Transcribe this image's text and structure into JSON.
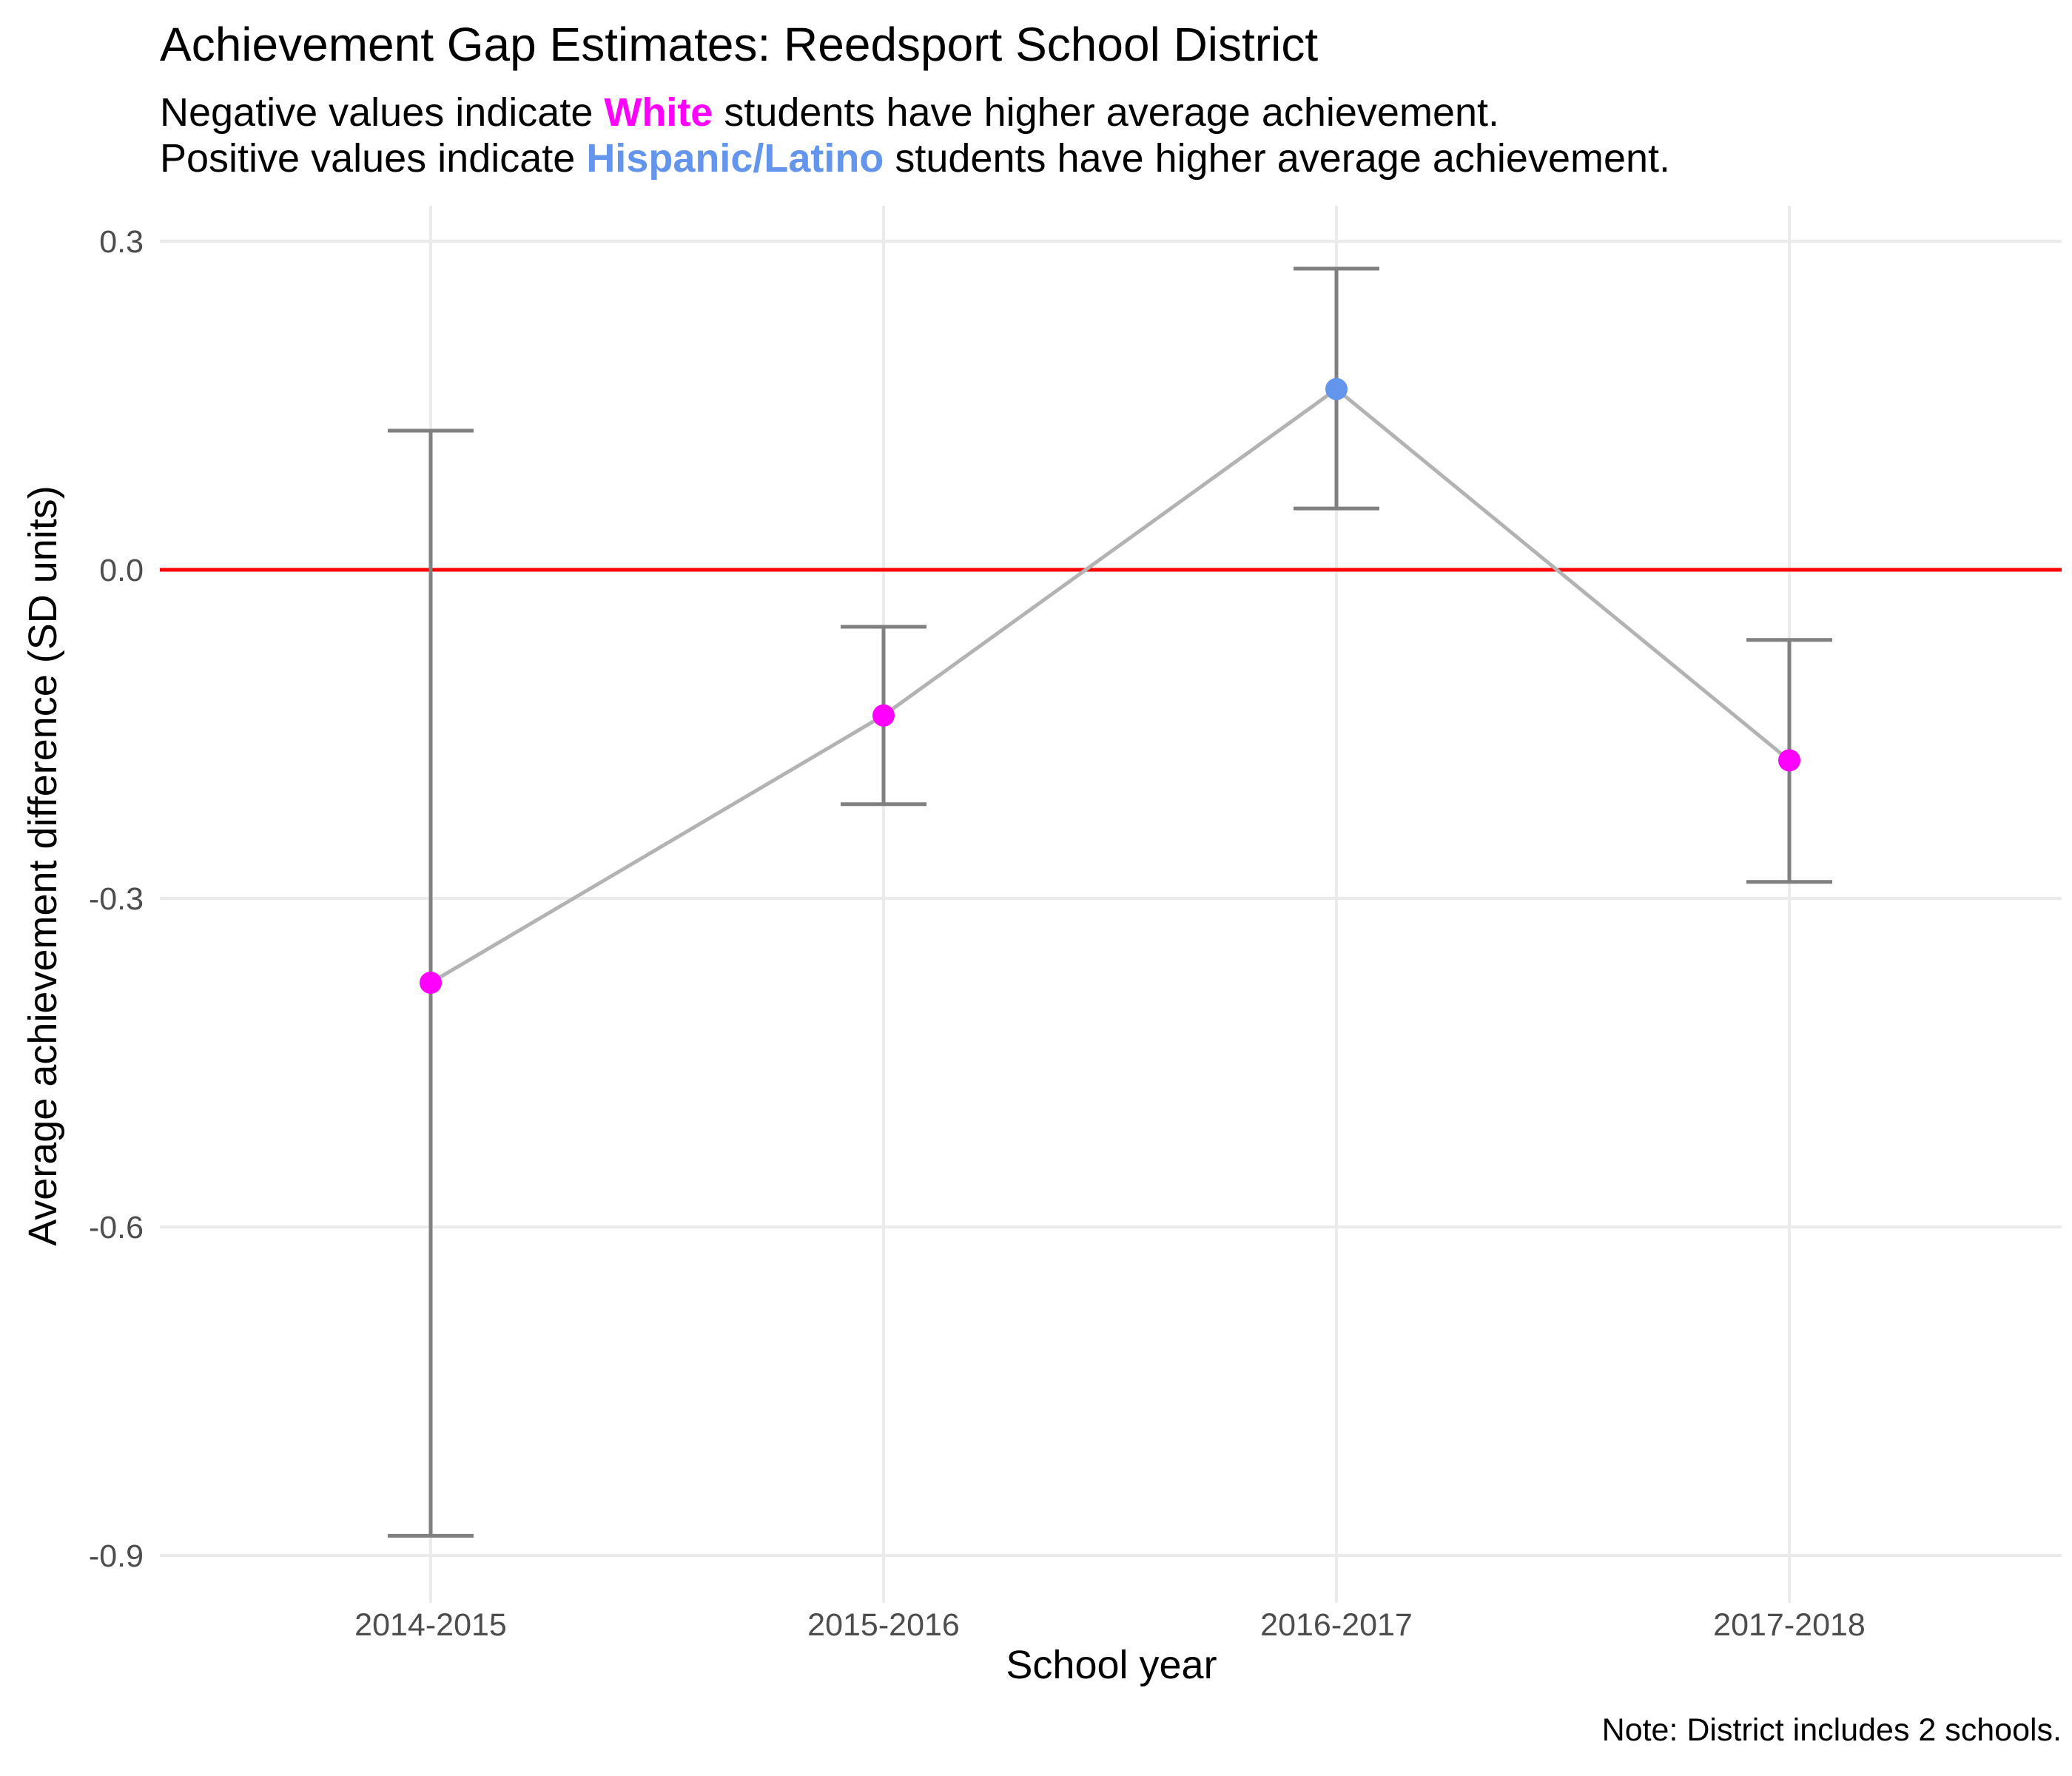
{
  "chart_data": {
    "type": "scatter",
    "title": "Achievement Gap Estimates: Reedsport School District",
    "subtitle": {
      "line1": {
        "prefix": "Negative values indicate ",
        "highlight": "White",
        "suffix": " students have higher average achievement."
      },
      "line2": {
        "prefix": "Positive values indicate ",
        "highlight": "Hispanic/Latino",
        "suffix": " students have higher average achievement."
      }
    },
    "xlabel": "School year",
    "ylabel": "Average achievement difference (SD units)",
    "caption": "Note: District includes 2 schools.",
    "categories": [
      "2014-2015",
      "2015-2016",
      "2016-2017",
      "2017-2018"
    ],
    "y_ticks": [
      "0.3",
      "0.0",
      "-0.3",
      "-0.6",
      "-0.9"
    ],
    "y_tick_values": [
      0.3,
      0.0,
      -0.3,
      -0.6,
      -0.9
    ],
    "ylim": [
      -0.93,
      0.33
    ],
    "reference_line": 0.0,
    "points": [
      {
        "x": "2014-2015",
        "y": -0.377,
        "lower": -0.882,
        "upper": 0.127
      },
      {
        "x": "2015-2016",
        "y": -0.133,
        "lower": -0.214,
        "upper": -0.052
      },
      {
        "x": "2016-2017",
        "y": 0.165,
        "lower": 0.056,
        "upper": 0.275
      },
      {
        "x": "2017-2018",
        "y": -0.174,
        "lower": -0.285,
        "upper": -0.064
      }
    ],
    "grid": true,
    "legend": "none",
    "colors": {
      "white": "#FF00FF",
      "hispanic": "#6495ED",
      "reference": "#FF0000",
      "errorbar": "#808080",
      "line": "#B3B3B3",
      "grid": "#EBEBEB"
    }
  }
}
